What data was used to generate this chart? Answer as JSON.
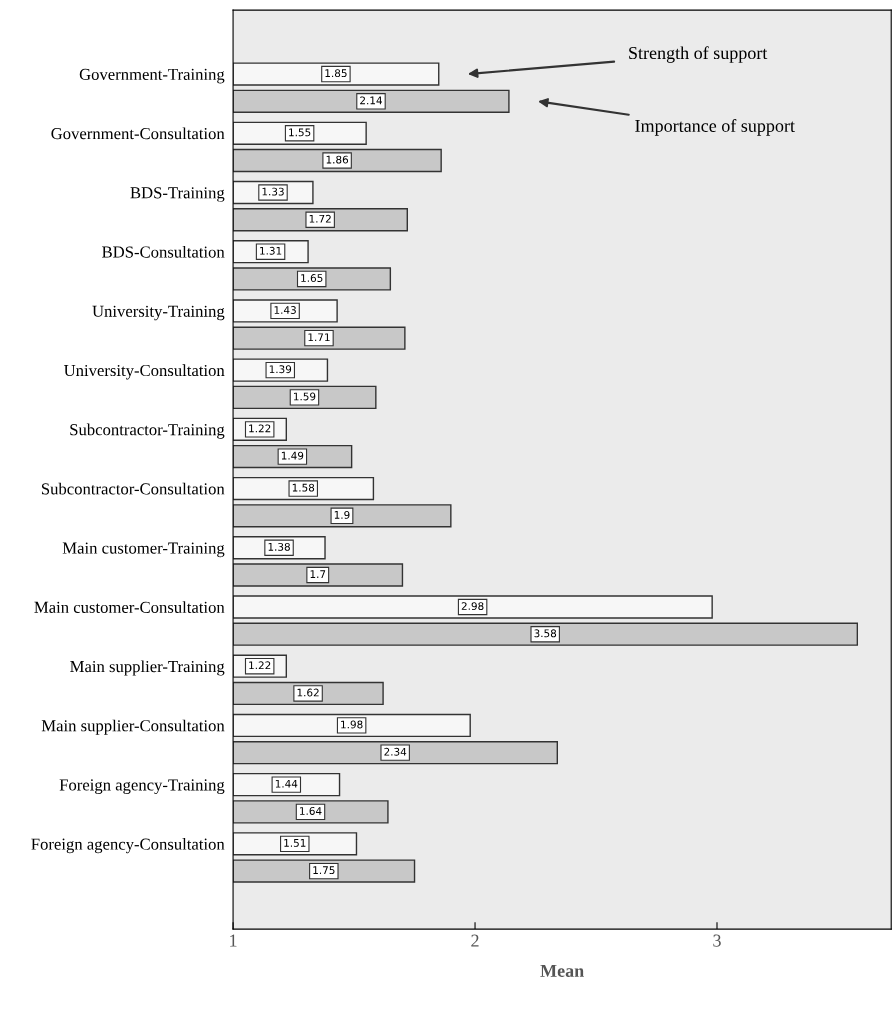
{
  "chart_data": {
    "type": "bar",
    "orientation": "horizontal",
    "xlabel": "Mean",
    "categories": [
      "Government-Training",
      "Government-Consultation",
      "BDS-Training",
      "BDS-Consultation",
      "University-Training",
      "University-Consultation",
      "Subcontractor-Training",
      "Subcontractor-Consultation",
      "Main customer-Training",
      "Main customer-Consultation",
      "Main supplier-Training",
      "Main supplier-Consultation",
      "Foreign agency-Training",
      "Foreign agency-Consultation"
    ],
    "series": [
      {
        "name": "Strength of support",
        "color": "#f7f7f7",
        "values": [
          1.85,
          1.55,
          1.33,
          1.31,
          1.43,
          1.39,
          1.22,
          1.58,
          1.38,
          2.98,
          1.22,
          1.98,
          1.44,
          1.51
        ]
      },
      {
        "name": "Importance of support",
        "color": "#c8c8c8",
        "values": [
          2.14,
          1.86,
          1.72,
          1.65,
          1.71,
          1.59,
          1.49,
          1.9,
          1.7,
          3.58,
          1.62,
          2.34,
          1.64,
          1.75
        ]
      }
    ],
    "xlim": [
      1,
      3.72
    ],
    "xticks": [
      1,
      2,
      3
    ],
    "data_labels": true,
    "legend": false,
    "grid": false
  }
}
